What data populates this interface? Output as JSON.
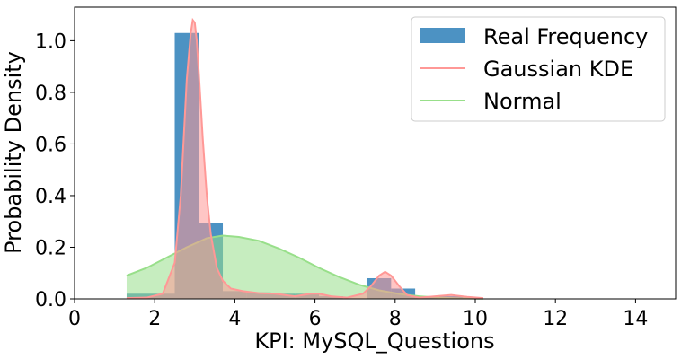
{
  "chart_data": {
    "type": "histogram",
    "xlabel": "KPI: MySQL_Questions",
    "ylabel": "Probability Density",
    "xlim": [
      0,
      15
    ],
    "ylim": [
      0,
      1.13
    ],
    "x_ticks": [
      "0",
      "2",
      "4",
      "6",
      "8",
      "10",
      "12",
      "14"
    ],
    "y_ticks": [
      "0.0",
      "0.2",
      "0.4",
      "0.6",
      "0.8",
      "1.0"
    ],
    "legend": {
      "placement": "top-right",
      "entries": [
        "Real Frequency",
        "Gaussian KDE",
        "Normal"
      ]
    },
    "series": [
      {
        "name": "Real Frequency",
        "kind": "histogram",
        "color": "#1f77b4",
        "bins": [
          {
            "x0": 1.3,
            "x1": 2.5,
            "value": 0.02
          },
          {
            "x0": 2.5,
            "x1": 3.1,
            "value": 1.03
          },
          {
            "x0": 3.1,
            "x1": 3.7,
            "value": 0.295
          },
          {
            "x0": 3.7,
            "x1": 4.3,
            "value": 0.03
          },
          {
            "x0": 4.3,
            "x1": 4.9,
            "value": 0.025
          },
          {
            "x0": 4.9,
            "x1": 5.5,
            "value": 0.02
          },
          {
            "x0": 5.5,
            "x1": 6.1,
            "value": 0.02
          },
          {
            "x0": 6.1,
            "x1": 6.7,
            "value": 0.01
          },
          {
            "x0": 6.7,
            "x1": 7.3,
            "value": 0.0
          },
          {
            "x0": 7.3,
            "x1": 7.9,
            "value": 0.08
          },
          {
            "x0": 7.9,
            "x1": 8.5,
            "value": 0.04
          },
          {
            "x0": 8.5,
            "x1": 9.1,
            "value": 0.005
          },
          {
            "x0": 9.1,
            "x1": 9.7,
            "value": 0.01
          },
          {
            "x0": 9.7,
            "x1": 10.2,
            "value": 0.005
          }
        ]
      },
      {
        "name": "Gaussian KDE",
        "kind": "density",
        "color": "#ff9896",
        "x": [
          1.3,
          1.8,
          2.2,
          2.5,
          2.65,
          2.8,
          2.9,
          2.95,
          3.0,
          3.05,
          3.1,
          3.2,
          3.3,
          3.4,
          3.55,
          3.7,
          3.9,
          4.2,
          4.6,
          5.0,
          5.5,
          5.9,
          6.1,
          6.4,
          6.8,
          7.2,
          7.4,
          7.6,
          7.75,
          7.9,
          8.1,
          8.3,
          8.6,
          9.0,
          9.4,
          9.8,
          10.2
        ],
        "y": [
          0.003,
          0.005,
          0.02,
          0.14,
          0.4,
          0.85,
          1.03,
          1.08,
          1.07,
          1.0,
          0.88,
          0.62,
          0.4,
          0.25,
          0.12,
          0.07,
          0.04,
          0.03,
          0.022,
          0.02,
          0.01,
          0.02,
          0.02,
          0.01,
          0.005,
          0.02,
          0.05,
          0.09,
          0.105,
          0.09,
          0.05,
          0.015,
          0.005,
          0.01,
          0.015,
          0.008,
          0.003
        ]
      },
      {
        "name": "Normal",
        "kind": "density",
        "color": "#98df8a",
        "x": [
          1.3,
          1.8,
          2.3,
          2.8,
          3.3,
          3.7,
          4.1,
          4.6,
          5.1,
          5.6,
          6.1,
          6.6,
          7.1,
          7.6,
          8.1,
          8.6,
          9.1,
          9.6,
          10.2
        ],
        "y": [
          0.09,
          0.12,
          0.16,
          0.2,
          0.235,
          0.245,
          0.24,
          0.225,
          0.195,
          0.16,
          0.12,
          0.085,
          0.055,
          0.033,
          0.019,
          0.01,
          0.005,
          0.002,
          0.001
        ]
      }
    ]
  }
}
